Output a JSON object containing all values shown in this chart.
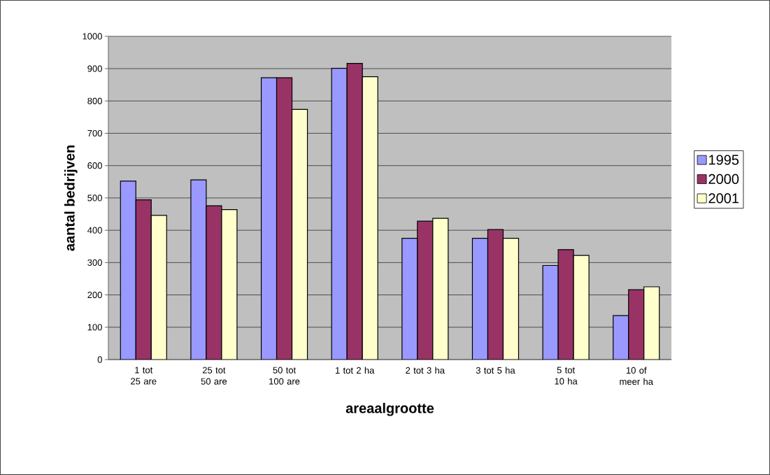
{
  "chart_data": {
    "type": "bar",
    "xlabel": "areaalgrootte",
    "ylabel": "aantal bedrijven",
    "categories": [
      "1 tot 25 are",
      "25 tot 50 are",
      "50 tot 100 are",
      "1 tot 2 ha",
      "2 tot 3 ha",
      "3 tot 5 ha",
      "5 tot 10 ha",
      "10 of meer ha"
    ],
    "series": [
      {
        "name": "1995",
        "color": "#9999ff",
        "values": [
          552,
          556,
          872,
          901,
          375,
          375,
          291,
          136
        ]
      },
      {
        "name": "2000",
        "color": "#993366",
        "values": [
          494,
          476,
          872,
          916,
          428,
          402,
          340,
          216
        ]
      },
      {
        "name": "2001",
        "color": "#ffffcc",
        "values": [
          446,
          464,
          774,
          875,
          437,
          375,
          322,
          225
        ]
      }
    ],
    "ylim": [
      0,
      1000
    ],
    "yticks": [
      0,
      100,
      200,
      300,
      400,
      500,
      600,
      700,
      800,
      900,
      1000
    ],
    "grid": "y",
    "legend": "right"
  }
}
